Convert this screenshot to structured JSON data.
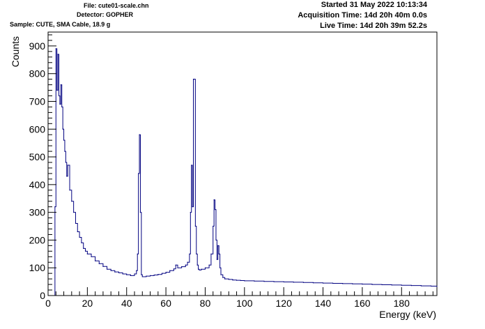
{
  "header": {
    "file": "File: cute01-scale.chn",
    "detector": "Detector: GOPHER",
    "sample": "Sample: CUTE, SMA Cable, 18.9 g",
    "started": "Started 31 May 2022 10:13:34",
    "acquisition_time": "Acquisition Time: 14d 20h 40m 0.0s",
    "live_time": "Live Time: 14d 20h 39m 52.2s"
  },
  "colors": {
    "series": "#000080",
    "axis": "#000000"
  },
  "chart_data": {
    "type": "line",
    "style": "histogram-step",
    "title": "",
    "xlabel": "Energy (keV)",
    "ylabel": "Counts",
    "xlim": [
      0,
      198
    ],
    "ylim": [
      0,
      950
    ],
    "xticks": [
      0,
      20,
      40,
      60,
      80,
      100,
      120,
      140,
      160,
      180
    ],
    "yticks": [
      0,
      100,
      200,
      300,
      400,
      500,
      600,
      700,
      800,
      900
    ],
    "grid": false,
    "series": [
      {
        "x": [
          3.5,
          4,
          4.5,
          5,
          5.5,
          6,
          6.5,
          7,
          7.5,
          8,
          8.5,
          9,
          9.5,
          10,
          11,
          12,
          13,
          14,
          15,
          16,
          17,
          18,
          19,
          20,
          22,
          24,
          26,
          28,
          30,
          32,
          34,
          36,
          38,
          40,
          42,
          44,
          45,
          45.5,
          46,
          46.5,
          47,
          47.5,
          48,
          50,
          52,
          54,
          56,
          58,
          60,
          62,
          64,
          65,
          66,
          68,
          70,
          71,
          72,
          72.5,
          73,
          73.5,
          74,
          74.5,
          75,
          75.5,
          76,
          76.5,
          77,
          78,
          80,
          82,
          83,
          84,
          84.5,
          85,
          85.5,
          86,
          86.5,
          87,
          87.5,
          88,
          89,
          90,
          92,
          94,
          96,
          98,
          100,
          105,
          110,
          115,
          120,
          125,
          130,
          135,
          140,
          145,
          150,
          155,
          160,
          165,
          170,
          175,
          180,
          185,
          190,
          195,
          198
        ],
        "y": [
          320,
          890,
          740,
          870,
          720,
          690,
          760,
          680,
          600,
          560,
          520,
          480,
          430,
          470,
          380,
          340,
          300,
          260,
          230,
          210,
          190,
          170,
          160,
          150,
          140,
          125,
          115,
          105,
          95,
          90,
          85,
          82,
          78,
          75,
          72,
          78,
          90,
          150,
          440,
          580,
          300,
          75,
          68,
          70,
          72,
          74,
          76,
          80,
          84,
          90,
          96,
          110,
          100,
          104,
          110,
          120,
          150,
          300,
          470,
          320,
          780,
          780,
          250,
          150,
          110,
          95,
          92,
          95,
          100,
          110,
          150,
          250,
          345,
          310,
          200,
          130,
          180,
          150,
          100,
          75,
          65,
          60,
          58,
          56,
          55,
          54,
          53,
          52,
          51,
          50,
          49,
          48,
          47,
          46,
          45,
          44,
          43,
          42,
          41,
          40,
          39,
          38,
          37,
          36,
          35,
          34,
          33
        ]
      }
    ]
  }
}
